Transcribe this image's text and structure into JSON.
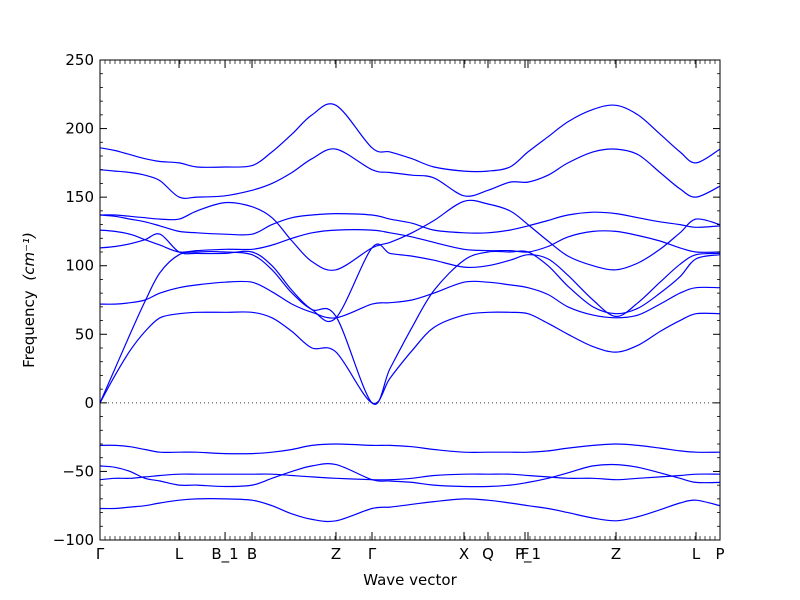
{
  "chart_data": {
    "type": "line",
    "title": "",
    "xlabel": "Wave vector",
    "ylabel": "Frequency",
    "ylabel_unit_math": "(cm⁻¹)",
    "ylim": [
      -100,
      250
    ],
    "yticks": [
      -100,
      -50,
      0,
      50,
      100,
      150,
      200,
      250
    ],
    "path_ticks": [
      {
        "label": "Γ",
        "x": 0.0
      },
      {
        "label": "L",
        "x": 0.1275
      },
      {
        "label": "B_1",
        "x": 0.2017
      },
      {
        "label": "B",
        "x": 0.2452
      },
      {
        "label": "Z",
        "x": 0.3806
      },
      {
        "label": "Γ",
        "x": 0.4387
      },
      {
        "label": "X",
        "x": 0.5871
      },
      {
        "label": "Q",
        "x": 0.6258
      },
      {
        "label": "F",
        "x": 0.6855
      },
      {
        "label": "P_1",
        "x": 0.6903
      },
      {
        "label": "Z",
        "x": 0.8323
      },
      {
        "label": "L",
        "x": 0.9613
      },
      {
        "label": "P",
        "x": 1.0
      }
    ],
    "zero_line": {
      "y": 0,
      "style": "dotted"
    },
    "line_color": "#0000ff",
    "grid": false,
    "legend": "none",
    "x": [
      0.0,
      0.0242,
      0.0484,
      0.0726,
      0.0968,
      0.1275,
      0.1565,
      0.2017,
      0.2452,
      0.2774,
      0.3097,
      0.3419,
      0.3806,
      0.4387,
      0.4677,
      0.5032,
      0.5387,
      0.5871,
      0.6258,
      0.6613,
      0.6903,
      0.7226,
      0.7548,
      0.7952,
      0.8323,
      0.8677,
      0.9032,
      0.9355,
      0.9613,
      1.0
    ],
    "series": [
      {
        "values": [
          186,
          184,
          181,
          178,
          176,
          175,
          172,
          172,
          173,
          183,
          196,
          210,
          217,
          186,
          183,
          178,
          172,
          169,
          169,
          172,
          183,
          194,
          205,
          214,
          217,
          210,
          196,
          183,
          175,
          185
        ]
      },
      {
        "values": [
          170,
          169,
          168,
          166,
          162,
          150,
          150,
          151,
          155,
          160,
          168,
          178,
          185,
          170,
          168,
          166,
          164,
          151,
          155,
          161,
          161,
          166,
          175,
          183,
          185,
          181,
          168,
          156,
          150,
          158
        ]
      },
      {
        "values": [
          137,
          137,
          136,
          135,
          134,
          134,
          140,
          146,
          143,
          135,
          118,
          103,
          97,
          113,
          117,
          124,
          133,
          147,
          145,
          140,
          130,
          118,
          107,
          100,
          97,
          102,
          112,
          124,
          134,
          130
        ]
      },
      {
        "values": [
          137,
          136,
          134,
          132,
          129,
          125,
          124,
          123,
          123,
          130,
          135,
          137,
          138,
          137,
          134,
          131,
          126,
          124,
          124,
          126,
          129,
          133,
          137,
          139,
          138,
          135,
          132,
          130,
          128,
          129
        ]
      },
      {
        "values": [
          126,
          125,
          123,
          119,
          115,
          110,
          111,
          112,
          112,
          115,
          120,
          124,
          126,
          126,
          124,
          121,
          117,
          112,
          111,
          111,
          110,
          114,
          121,
          125,
          125,
          122,
          118,
          113,
          110,
          110
        ]
      },
      {
        "values": [
          113,
          114,
          116,
          119,
          123,
          110,
          109,
          109,
          110,
          100,
          82,
          68,
          62,
          113,
          109,
          107,
          104,
          99,
          100,
          104,
          108,
          105,
          93,
          75,
          63,
          73,
          88,
          101,
          108,
          109
        ]
      },
      {
        "values": [
          0,
          25,
          50,
          74,
          95,
          108,
          110,
          110,
          108,
          97,
          80,
          68,
          63,
          0,
          25,
          55,
          82,
          104,
          110,
          110,
          110,
          100,
          85,
          70,
          65,
          69,
          80,
          92,
          105,
          108
        ]
      },
      {
        "values": [
          72,
          72,
          73,
          75,
          80,
          84,
          86,
          88,
          88,
          81,
          72,
          66,
          62,
          72,
          73,
          75,
          80,
          88,
          88,
          86,
          84,
          79,
          70,
          64,
          62,
          64,
          72,
          80,
          84,
          84
        ]
      },
      {
        "values": [
          0,
          20,
          38,
          52,
          62,
          65,
          66,
          66,
          66,
          62,
          52,
          40,
          37,
          0,
          18,
          38,
          55,
          64,
          66,
          66,
          65,
          58,
          50,
          41,
          37,
          42,
          52,
          60,
          65,
          65
        ]
      },
      {
        "values": [
          -31,
          -31,
          -32,
          -34,
          -36,
          -36,
          -36,
          -37,
          -37,
          -36,
          -34,
          -31,
          -30,
          -31,
          -31,
          -32,
          -34,
          -36,
          -36,
          -36,
          -36,
          -35,
          -33,
          -31,
          -30,
          -31,
          -33,
          -35,
          -36,
          -36
        ]
      },
      {
        "values": [
          -46,
          -47,
          -50,
          -55,
          -57,
          -60,
          -60,
          -61,
          -60,
          -55,
          -50,
          -46,
          -45,
          -56,
          -57,
          -58,
          -60,
          -61,
          -61,
          -60,
          -58,
          -55,
          -51,
          -46,
          -45,
          -47,
          -51,
          -55,
          -58,
          -58
        ]
      },
      {
        "values": [
          -56,
          -55,
          -55,
          -54,
          -53,
          -52,
          -52,
          -52,
          -52,
          -52,
          -53,
          -54,
          -55,
          -56,
          -56,
          -55,
          -53,
          -52,
          -52,
          -52,
          -53,
          -54,
          -55,
          -55,
          -56,
          -55,
          -54,
          -53,
          -52,
          -52
        ]
      },
      {
        "values": [
          -77,
          -77,
          -76,
          -75,
          -73,
          -71,
          -70,
          -70,
          -71,
          -75,
          -81,
          -85,
          -86,
          -77,
          -76,
          -74,
          -72,
          -70,
          -71,
          -73,
          -75,
          -77,
          -80,
          -84,
          -86,
          -83,
          -78,
          -73,
          -71,
          -75
        ]
      }
    ]
  }
}
